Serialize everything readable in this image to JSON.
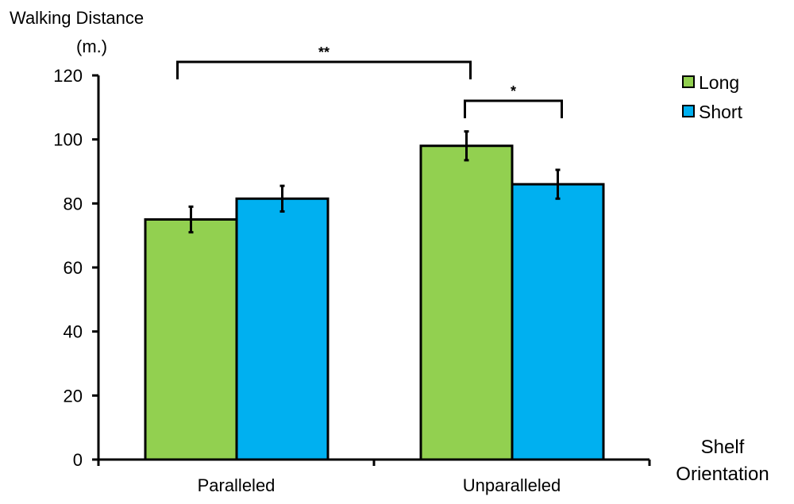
{
  "chart_data": {
    "type": "bar",
    "ylabel": [
      "Walking Distance",
      "(m.)"
    ],
    "xlabel": [
      "Shelf",
      "Orientation"
    ],
    "categories": [
      "Paralleled",
      "Unparalleled"
    ],
    "series": [
      {
        "name": "Long",
        "values": [
          75,
          98
        ],
        "errors": [
          4,
          4.5
        ]
      },
      {
        "name": "Short",
        "values": [
          81.5,
          86
        ],
        "errors": [
          4,
          4.5
        ]
      }
    ],
    "colors": {
      "Long": "#92d050",
      "Short": "#00b0f0"
    },
    "ylim": [
      0,
      120
    ],
    "yticks": [
      0,
      20,
      40,
      60,
      80,
      100,
      120
    ],
    "grid": false,
    "legend_position": "top-right",
    "annotations": [
      {
        "label": "**",
        "from": "Paralleled Long",
        "to": "Unparalleled Long"
      },
      {
        "label": "*",
        "from": "Unparalleled Long",
        "to": "Unparalleled Short"
      }
    ]
  }
}
